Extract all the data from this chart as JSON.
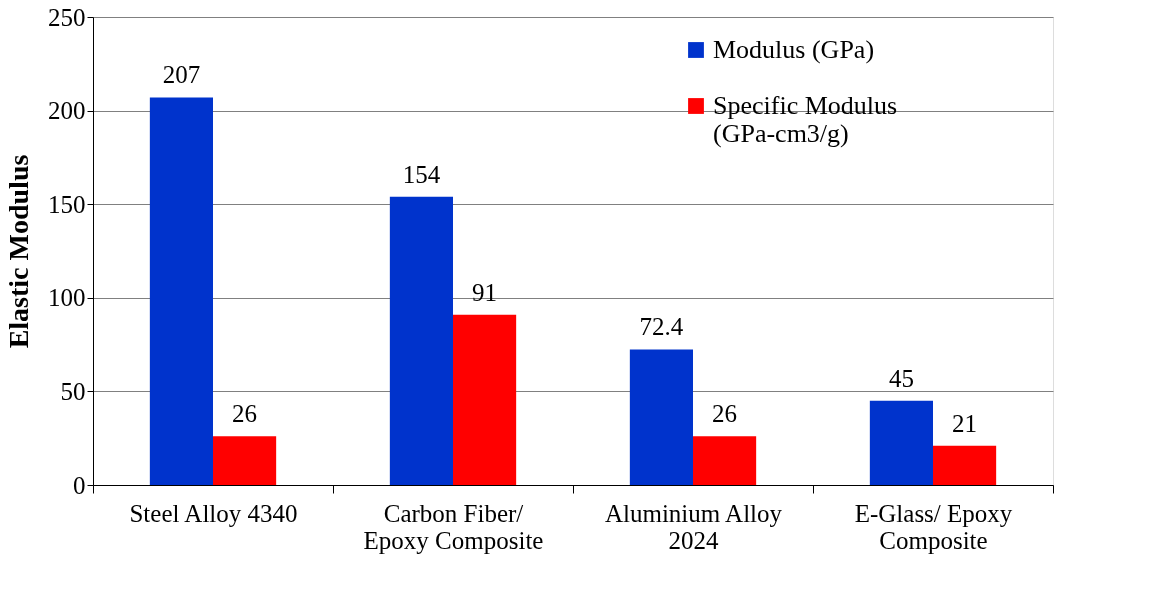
{
  "chart_data": {
    "type": "bar",
    "ylabel": "Elastic Modulus",
    "categories": [
      "Steel Alloy 4340",
      "Carbon Fiber/ Epoxy Composite",
      "Aluminium Alloy 2024",
      "E-Glass/ Epoxy Composite"
    ],
    "series": [
      {
        "name": "Modulus (GPa)",
        "color": "#0033cc",
        "values": [
          207,
          154,
          72.4,
          45
        ]
      },
      {
        "name": "Specific Modulus (GPa-cm3/g)",
        "color": "#ff0000",
        "values": [
          26,
          91,
          26,
          21
        ]
      }
    ],
    "ylim": [
      0,
      250
    ],
    "yticks": [
      0,
      50,
      100,
      150,
      200,
      250
    ],
    "grid": "y",
    "legend": "top right",
    "data_labels": true
  }
}
